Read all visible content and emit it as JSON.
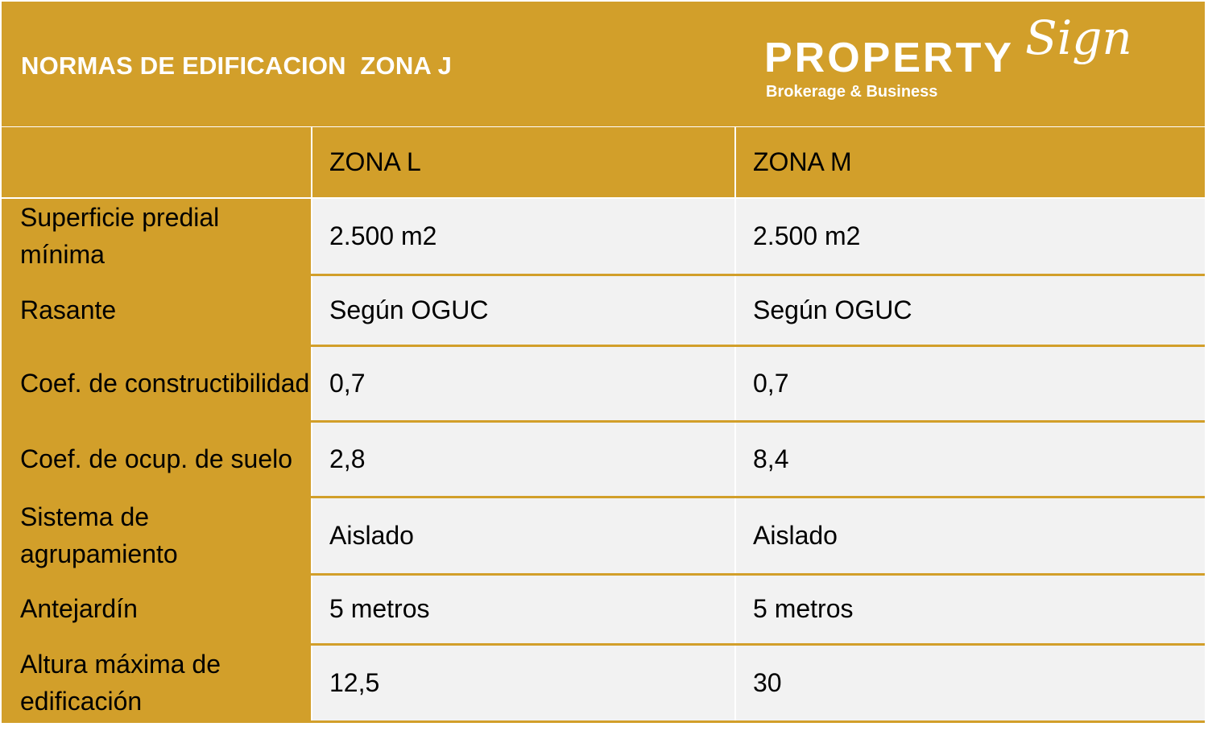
{
  "header": {
    "title": "NORMAS DE EDIFICACION  ZONA J",
    "logo": {
      "main": "PROPERTY",
      "script": "Sign",
      "tagline": "Brokerage & Business"
    }
  },
  "colors": {
    "gold": "#D29F2A",
    "cell_bg": "#F2F2F2",
    "text": "#000000",
    "header_text": "#FFFFFF"
  },
  "table": {
    "columns": [
      "",
      "ZONA L",
      "ZONA M"
    ],
    "rows": [
      {
        "label": "Superficie predial mínima",
        "zona_l": "2.500 m2",
        "zona_m": "2.500 m2"
      },
      {
        "label": "Rasante",
        "zona_l": "Según OGUC",
        "zona_m": "Según OGUC"
      },
      {
        "label": "Coef. de constructibilidad",
        "zona_l": "0,7",
        "zona_m": "0,7"
      },
      {
        "label": "Coef. de ocup. de suelo",
        "zona_l": "2,8",
        "zona_m": "8,4"
      },
      {
        "label": "Sistema de agrupamiento",
        "zona_l": "Aislado",
        "zona_m": "Aislado"
      },
      {
        "label": "Antejardín",
        "zona_l": "5 metros",
        "zona_m": "5 metros"
      },
      {
        "label": "Altura máxima de edificación",
        "zona_l": "12,5",
        "zona_m": "30"
      }
    ]
  }
}
